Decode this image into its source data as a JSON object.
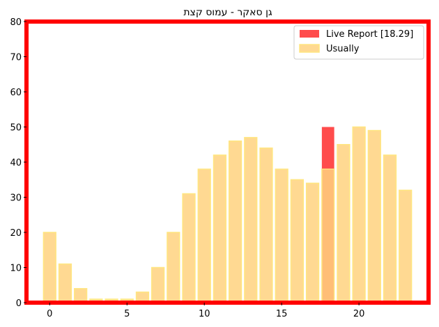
{
  "chart_data": {
    "type": "bar",
    "title": "גן סאקר - עמוס קצת",
    "xlabel": "",
    "ylabel": "",
    "xlim": [
      -1.5,
      24.5
    ],
    "ylim": [
      0,
      80
    ],
    "xticks": [
      0,
      5,
      10,
      15,
      20
    ],
    "yticks": [
      0,
      10,
      20,
      30,
      40,
      50,
      60,
      70,
      80
    ],
    "grid": false,
    "legend_position": "top-right",
    "series": [
      {
        "name": "Live Report [18.29]",
        "color": "#ff0000",
        "x": [
          18
        ],
        "values": [
          50
        ]
      },
      {
        "name": "Usually",
        "color": "#ffd27f",
        "edge_color": "#ffe680",
        "x": [
          0,
          1,
          2,
          3,
          4,
          5,
          6,
          7,
          8,
          9,
          10,
          11,
          12,
          13,
          14,
          15,
          16,
          17,
          18,
          19,
          20,
          21,
          22,
          23
        ],
        "values": [
          20,
          11,
          4,
          1,
          1,
          1,
          3,
          10,
          20,
          31,
          38,
          42,
          46,
          47,
          44,
          38,
          35,
          34,
          38,
          45,
          50,
          49,
          42,
          32
        ]
      }
    ],
    "frame_color": "#ff0000"
  }
}
